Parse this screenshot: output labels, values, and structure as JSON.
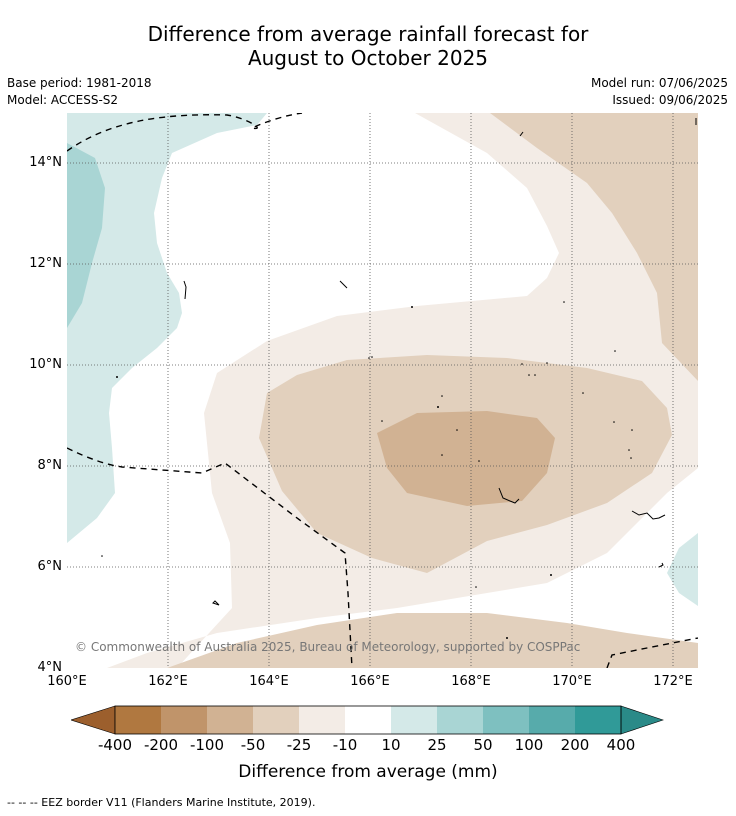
{
  "header": {
    "title_line1": "Difference from average rainfall forecast for",
    "title_line2": "August to October 2025",
    "base_period": "Base period: 1981-2018",
    "model": "Model: ACCESS-S2",
    "model_run": "Model run: 07/06/2025",
    "issued": "Issued: 09/06/2025"
  },
  "map": {
    "copyright": "© Commonwealth of Australia 2025, Bureau of Meteorology, supported by COSPPac",
    "lat_labels": [
      "14°N",
      "12°N",
      "10°N",
      "8°N",
      "6°N",
      "4°N"
    ],
    "lon_labels": [
      "160°E",
      "162°E",
      "164°E",
      "166°E",
      "168°E",
      "170°E",
      "172°E"
    ],
    "lon_range": [
      160,
      172.5
    ],
    "lat_range": [
      4,
      15
    ]
  },
  "colorbar": {
    "title": "Difference from average (mm)",
    "labels": [
      "-400",
      "-200",
      "-100",
      "-50",
      "-25",
      "-10",
      "10",
      "25",
      "50",
      "100",
      "200",
      "400"
    ],
    "colors": [
      "#9c5f2d",
      "#b07840",
      "#c0946a",
      "#d1b293",
      "#e2d0bd",
      "#f3ece6",
      "#ffffff",
      "#d4e9e8",
      "#a9d5d4",
      "#7ec0c0",
      "#57abab",
      "#309a98",
      "#2a8a88"
    ]
  },
  "footnote": "--  --  -- EEZ border V11 (Flanders Marine Institute, 2019)."
}
